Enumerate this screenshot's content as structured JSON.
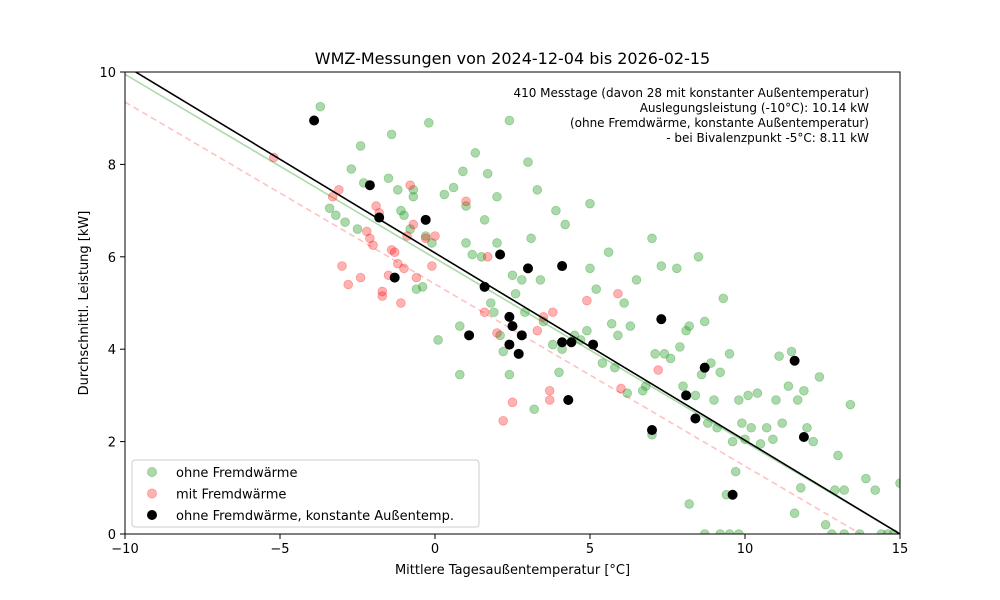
{
  "chart_data": {
    "type": "scatter",
    "title": "WMZ-Messungen von 2024-12-04 bis 2026-02-15",
    "xlabel": "Mittlere Tagesaußentemperatur [°C]",
    "ylabel": "Durchschnittl. Leistung [kW]",
    "xlim": [
      -10,
      15
    ],
    "ylim": [
      0,
      10
    ],
    "xticks": [
      -10,
      -5,
      0,
      5,
      10,
      15
    ],
    "yticks": [
      0,
      2,
      4,
      6,
      8,
      10
    ],
    "grid": false,
    "legend_position": "lower-left",
    "annotations": [
      "410 Messtage (davon 28 mit konstanter Außentemperatur)",
      "Auslegungsleistung (-10°C): 10.14 kW",
      "(ohne Fremdwärme, konstante Außentemperatur)",
      "- bei Bivalenzpunkt -5°C: 8.11 kW"
    ],
    "fit_lines": [
      {
        "color": "#000000",
        "style": "solid",
        "points": [
          [
            -10,
            10.14
          ],
          [
            15,
            0
          ]
        ]
      },
      {
        "color": "#2ca02c",
        "style": "solid",
        "points": [
          [
            -10,
            9.95
          ],
          [
            15,
            0
          ]
        ]
      },
      {
        "color": "#ff6666",
        "style": "dashed",
        "points": [
          [
            -10,
            9.35
          ],
          [
            15,
            -0.5
          ]
        ]
      }
    ],
    "series": [
      {
        "name": "ohne Fremdwärme",
        "color": "#2ca02c",
        "alpha": 0.4,
        "points": [
          [
            -3.7,
            9.25
          ],
          [
            -3.4,
            7.05
          ],
          [
            -3.2,
            6.9
          ],
          [
            -2.9,
            6.75
          ],
          [
            -2.7,
            7.9
          ],
          [
            -2.5,
            6.6
          ],
          [
            -2.4,
            8.4
          ],
          [
            -2.3,
            7.6
          ],
          [
            -1.5,
            7.7
          ],
          [
            -1.4,
            8.65
          ],
          [
            -1.2,
            7.45
          ],
          [
            -1.1,
            7.0
          ],
          [
            -1.0,
            6.9
          ],
          [
            -0.8,
            6.6
          ],
          [
            -0.7,
            7.45
          ],
          [
            -0.7,
            7.3
          ],
          [
            -0.6,
            5.3
          ],
          [
            -0.4,
            5.35
          ],
          [
            -0.3,
            6.45
          ],
          [
            -0.2,
            8.9
          ],
          [
            -0.1,
            6.3
          ],
          [
            0.1,
            4.2
          ],
          [
            0.3,
            7.35
          ],
          [
            0.6,
            7.5
          ],
          [
            0.8,
            3.45
          ],
          [
            0.8,
            4.5
          ],
          [
            0.9,
            7.85
          ],
          [
            1.0,
            6.3
          ],
          [
            1.0,
            7.1
          ],
          [
            1.2,
            6.05
          ],
          [
            1.3,
            8.25
          ],
          [
            1.5,
            6.0
          ],
          [
            1.6,
            6.8
          ],
          [
            1.7,
            7.8
          ],
          [
            1.8,
            5.0
          ],
          [
            1.9,
            4.8
          ],
          [
            2.0,
            7.3
          ],
          [
            2.0,
            6.3
          ],
          [
            2.1,
            4.3
          ],
          [
            2.2,
            3.95
          ],
          [
            2.4,
            8.95
          ],
          [
            2.4,
            3.45
          ],
          [
            2.5,
            5.6
          ],
          [
            2.6,
            5.2
          ],
          [
            2.8,
            5.5
          ],
          [
            2.9,
            4.8
          ],
          [
            3.0,
            8.05
          ],
          [
            3.1,
            6.4
          ],
          [
            3.2,
            2.7
          ],
          [
            3.3,
            7.45
          ],
          [
            3.4,
            5.5
          ],
          [
            3.5,
            4.6
          ],
          [
            3.8,
            4.1
          ],
          [
            3.9,
            7.0
          ],
          [
            4.0,
            3.5
          ],
          [
            4.1,
            4.0
          ],
          [
            4.2,
            6.7
          ],
          [
            4.5,
            4.3
          ],
          [
            4.7,
            4.2
          ],
          [
            4.9,
            4.4
          ],
          [
            5.0,
            7.15
          ],
          [
            5.0,
            5.75
          ],
          [
            5.2,
            5.3
          ],
          [
            5.4,
            3.7
          ],
          [
            5.6,
            6.1
          ],
          [
            5.7,
            4.55
          ],
          [
            5.8,
            3.6
          ],
          [
            5.9,
            4.3
          ],
          [
            6.1,
            5.0
          ],
          [
            6.2,
            3.05
          ],
          [
            6.3,
            4.5
          ],
          [
            6.5,
            5.5
          ],
          [
            6.7,
            3.1
          ],
          [
            6.8,
            3.2
          ],
          [
            7.0,
            6.4
          ],
          [
            7.0,
            2.15
          ],
          [
            7.1,
            3.9
          ],
          [
            7.3,
            5.8
          ],
          [
            7.4,
            3.9
          ],
          [
            7.6,
            3.8
          ],
          [
            7.8,
            5.75
          ],
          [
            7.9,
            4.05
          ],
          [
            8.0,
            3.2
          ],
          [
            8.1,
            4.4
          ],
          [
            8.2,
            4.5
          ],
          [
            8.2,
            0.65
          ],
          [
            8.4,
            3.0
          ],
          [
            8.5,
            6.0
          ],
          [
            8.6,
            3.45
          ],
          [
            8.7,
            4.6
          ],
          [
            8.8,
            2.4
          ],
          [
            8.9,
            3.7
          ],
          [
            9.0,
            2.9
          ],
          [
            9.1,
            2.3
          ],
          [
            9.2,
            3.5
          ],
          [
            9.3,
            5.1
          ],
          [
            9.4,
            0.85
          ],
          [
            9.5,
            3.9
          ],
          [
            9.6,
            2.0
          ],
          [
            9.7,
            1.35
          ],
          [
            9.8,
            2.9
          ],
          [
            9.9,
            2.4
          ],
          [
            10.0,
            2.05
          ],
          [
            10.1,
            3.0
          ],
          [
            10.2,
            2.3
          ],
          [
            10.4,
            3.05
          ],
          [
            10.5,
            1.95
          ],
          [
            10.7,
            2.3
          ],
          [
            10.9,
            2.05
          ],
          [
            11.0,
            2.9
          ],
          [
            11.1,
            3.85
          ],
          [
            11.2,
            2.4
          ],
          [
            11.4,
            3.2
          ],
          [
            11.5,
            3.95
          ],
          [
            11.6,
            0.45
          ],
          [
            11.7,
            2.9
          ],
          [
            11.8,
            1.0
          ],
          [
            11.9,
            3.1
          ],
          [
            12.0,
            2.3
          ],
          [
            12.2,
            2.0
          ],
          [
            12.4,
            3.4
          ],
          [
            12.6,
            0.2
          ],
          [
            12.9,
            0.95
          ],
          [
            13.0,
            1.7
          ],
          [
            13.2,
            0.95
          ],
          [
            13.4,
            2.8
          ],
          [
            13.7,
            0.0
          ],
          [
            13.9,
            1.2
          ],
          [
            14.2,
            0.95
          ],
          [
            14.4,
            0.0
          ],
          [
            14.6,
            0.0
          ],
          [
            14.8,
            0.0
          ],
          [
            15.0,
            1.1
          ],
          [
            9.2,
            0.0
          ],
          [
            9.5,
            0.0
          ],
          [
            9.8,
            0.0
          ],
          [
            12.8,
            0.0
          ],
          [
            13.2,
            0.0
          ],
          [
            8.7,
            0.0
          ]
        ]
      },
      {
        "name": "mit Fremdwärme",
        "color": "#ff0000",
        "alpha": 0.3,
        "points": [
          [
            -5.2,
            8.15
          ],
          [
            -3.3,
            7.3
          ],
          [
            -3.1,
            7.45
          ],
          [
            -3.0,
            5.8
          ],
          [
            -2.8,
            5.4
          ],
          [
            -2.4,
            5.55
          ],
          [
            -2.2,
            6.55
          ],
          [
            -2.1,
            6.4
          ],
          [
            -2.0,
            6.25
          ],
          [
            -1.9,
            7.1
          ],
          [
            -1.8,
            6.95
          ],
          [
            -1.7,
            5.25
          ],
          [
            -1.7,
            5.15
          ],
          [
            -1.5,
            5.6
          ],
          [
            -1.4,
            6.15
          ],
          [
            -1.3,
            6.1
          ],
          [
            -1.2,
            5.85
          ],
          [
            -1.1,
            5.0
          ],
          [
            -1.0,
            5.75
          ],
          [
            -0.9,
            6.45
          ],
          [
            -0.8,
            7.55
          ],
          [
            -0.7,
            6.7
          ],
          [
            -0.6,
            5.55
          ],
          [
            -0.3,
            6.4
          ],
          [
            -0.1,
            5.8
          ],
          [
            0.0,
            6.45
          ],
          [
            1.0,
            7.2
          ],
          [
            1.6,
            4.8
          ],
          [
            1.7,
            6.0
          ],
          [
            2.0,
            4.35
          ],
          [
            2.2,
            2.45
          ],
          [
            2.5,
            2.85
          ],
          [
            3.3,
            4.4
          ],
          [
            3.5,
            4.7
          ],
          [
            3.7,
            3.1
          ],
          [
            3.7,
            2.9
          ],
          [
            3.8,
            4.8
          ],
          [
            4.9,
            5.05
          ],
          [
            5.9,
            5.2
          ],
          [
            6.0,
            3.15
          ],
          [
            7.2,
            3.55
          ]
        ]
      },
      {
        "name": "ohne Fremdwärme, konstante Außentemp.",
        "color": "#000000",
        "alpha": 1,
        "points": [
          [
            -3.9,
            8.95
          ],
          [
            -2.1,
            7.55
          ],
          [
            -1.8,
            6.85
          ],
          [
            -1.3,
            5.55
          ],
          [
            -0.3,
            6.8
          ],
          [
            1.1,
            4.3
          ],
          [
            1.6,
            5.35
          ],
          [
            2.1,
            6.05
          ],
          [
            2.4,
            4.7
          ],
          [
            2.4,
            4.1
          ],
          [
            2.5,
            4.5
          ],
          [
            2.7,
            3.9
          ],
          [
            2.8,
            4.3
          ],
          [
            3.0,
            5.75
          ],
          [
            4.1,
            5.8
          ],
          [
            4.1,
            4.15
          ],
          [
            4.3,
            2.9
          ],
          [
            4.4,
            4.15
          ],
          [
            5.1,
            4.1
          ],
          [
            7.0,
            2.25
          ],
          [
            7.3,
            4.65
          ],
          [
            8.1,
            3.0
          ],
          [
            8.4,
            2.5
          ],
          [
            8.7,
            3.6
          ],
          [
            9.6,
            0.85
          ],
          [
            11.6,
            3.75
          ],
          [
            11.9,
            2.1
          ]
        ]
      }
    ]
  }
}
